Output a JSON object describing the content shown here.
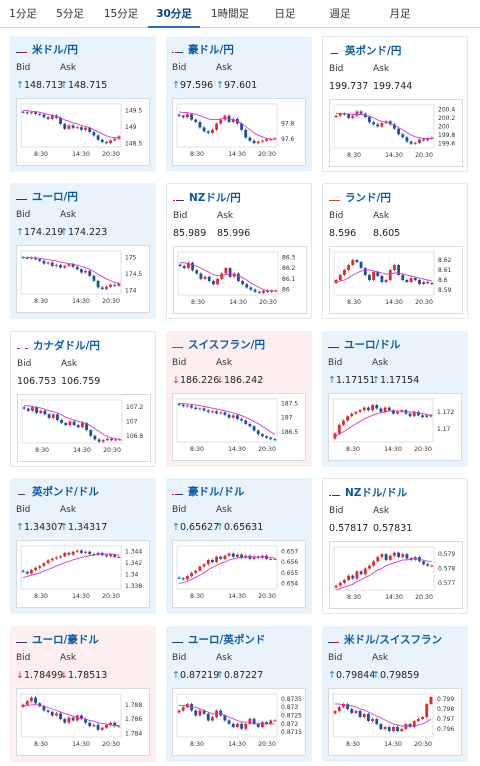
{
  "tabs": [
    {
      "label": "1分足",
      "active": false
    },
    {
      "label": "5分足",
      "active": false
    },
    {
      "label": "15分足",
      "active": false
    },
    {
      "label": "30分足",
      "active": true
    },
    {
      "label": "1時間足",
      "active": false
    },
    {
      "label": "日足",
      "active": false
    },
    {
      "label": "週足",
      "active": false
    },
    {
      "label": "月足",
      "active": false
    }
  ],
  "labels": {
    "bid": "Bid",
    "ask": "Ask"
  },
  "colors": {
    "accent": "#0b5aa7",
    "up_bg": "#e9f3fb",
    "down_bg": "#fdeef0",
    "candle_up": "#e0282e",
    "candle_down": "#1d4fa0",
    "ma": "#d23cc8",
    "arrow_up": "#1f78b4",
    "arrow_down": "#d0342c"
  },
  "cards": [
    {
      "name": "米ドル/円",
      "flag": "us",
      "trend": "up",
      "bid": "148.713",
      "ask": "148.715",
      "arrow": "up"
    },
    {
      "name": "豪ドル/円",
      "flag": "au",
      "trend": "up",
      "bid": "97.596",
      "ask": "97.601",
      "arrow": "up"
    },
    {
      "name": "英ポンド/円",
      "flag": "gb",
      "trend": "flat",
      "bid": "199.737",
      "ask": "199.744",
      "arrow": ""
    },
    {
      "name": "ユーロ/円",
      "flag": "eu",
      "trend": "up",
      "bid": "174.219",
      "ask": "174.223",
      "arrow": "up"
    },
    {
      "name": "NZドル/円",
      "flag": "nz",
      "trend": "flat",
      "bid": "85.989",
      "ask": "85.996",
      "arrow": ""
    },
    {
      "name": "ランド/円",
      "flag": "za",
      "trend": "flat",
      "bid": "8.596",
      "ask": "8.605",
      "arrow": ""
    },
    {
      "name": "カナダドル/円",
      "flag": "ca",
      "trend": "flat",
      "bid": "106.753",
      "ask": "106.759",
      "arrow": ""
    },
    {
      "name": "スイスフラン/円",
      "flag": "ch",
      "trend": "down",
      "bid": "186.226",
      "ask": "186.242",
      "arrow": "down"
    },
    {
      "name": "ユーロ/ドル",
      "flag": "eu",
      "trend": "up",
      "bid": "1.17151",
      "ask": "1.17154",
      "arrow": "up"
    },
    {
      "name": "英ポンド/ドル",
      "flag": "gb",
      "trend": "up",
      "bid": "1.34307",
      "ask": "1.34317",
      "arrow": "up"
    },
    {
      "name": "豪ドル/ドル",
      "flag": "au",
      "trend": "up",
      "bid": "0.65627",
      "ask": "0.65631",
      "arrow": "up"
    },
    {
      "name": "NZドル/ドル",
      "flag": "nz",
      "trend": "flat",
      "bid": "0.57817",
      "ask": "0.57831",
      "arrow": ""
    },
    {
      "name": "ユーロ/豪ドル",
      "flag": "eu",
      "trend": "down",
      "bid": "1.78499",
      "ask": "1.78513",
      "arrow": "down"
    },
    {
      "name": "ユーロ/英ポンド",
      "flag": "eu",
      "trend": "up",
      "bid": "0.87219",
      "ask": "0.87227",
      "arrow": "up"
    },
    {
      "name": "米ドル/スイスフラン",
      "flag": "us",
      "trend": "up",
      "bid": "0.79844",
      "ask": "0.79859",
      "arrow": "up"
    }
  ],
  "chart_data": [
    {
      "type": "candlestick",
      "title": "米ドル/円",
      "x_ticks": [
        "8:30",
        "14:30",
        "20:30"
      ],
      "y_ticks": [
        149.5,
        149,
        148.5
      ],
      "ylim": [
        148.4,
        149.7
      ],
      "close": [
        149.45,
        149.42,
        149.45,
        149.4,
        149.38,
        149.3,
        149.25,
        149.35,
        149.28,
        149.1,
        148.95,
        149.05,
        148.98,
        149.0,
        148.92,
        148.98,
        148.85,
        148.75,
        148.62,
        148.55,
        148.52,
        148.6,
        148.65,
        148.72
      ],
      "ma": [
        149.5,
        149.5,
        149.48,
        149.47,
        149.45,
        149.42,
        149.38,
        149.36,
        149.33,
        149.28,
        149.22,
        149.18,
        149.13,
        149.1,
        149.05,
        149.02,
        148.98,
        148.92,
        148.86,
        148.8,
        148.74,
        148.7,
        148.68,
        148.68
      ]
    },
    {
      "type": "candlestick",
      "title": "豪ドル/円",
      "x_ticks": [
        "8:30",
        "14:30",
        "20:30"
      ],
      "y_ticks": [
        97.8,
        97.6
      ],
      "ylim": [
        97.5,
        98.05
      ],
      "close": [
        97.9,
        97.88,
        97.92,
        97.85,
        97.82,
        97.75,
        97.7,
        97.68,
        97.72,
        97.8,
        97.85,
        97.9,
        97.82,
        97.86,
        97.8,
        97.72,
        97.62,
        97.58,
        97.55,
        97.57,
        97.58,
        97.6,
        97.6,
        97.61
      ],
      "ma": [
        97.95,
        97.94,
        97.94,
        97.93,
        97.92,
        97.9,
        97.88,
        97.86,
        97.85,
        97.85,
        97.86,
        97.87,
        97.86,
        97.85,
        97.83,
        97.8,
        97.76,
        97.72,
        97.68,
        97.65,
        97.63,
        97.61,
        97.6,
        97.6
      ]
    },
    {
      "type": "candlestick",
      "title": "英ポンド/円",
      "x_ticks": [
        "8:30",
        "14:30",
        "20:30"
      ],
      "y_ticks": [
        200.4,
        200.2,
        200,
        199.8,
        199.6
      ],
      "ylim": [
        199.5,
        200.5
      ],
      "close": [
        200.25,
        200.3,
        200.28,
        200.2,
        200.25,
        200.35,
        200.3,
        200.22,
        200.1,
        200.05,
        200.0,
        200.08,
        200.12,
        200.05,
        199.95,
        199.82,
        199.75,
        199.65,
        199.6,
        199.62,
        199.7,
        199.68,
        199.72,
        199.74
      ],
      "ma": [
        200.3,
        200.3,
        200.3,
        200.29,
        200.28,
        200.28,
        200.28,
        200.27,
        200.24,
        200.2,
        200.15,
        200.12,
        200.1,
        200.07,
        200.03,
        199.98,
        199.92,
        199.86,
        199.8,
        199.76,
        199.74,
        199.72,
        199.72,
        199.72
      ]
    },
    {
      "type": "candlestick",
      "title": "ユーロ/円",
      "x_ticks": [
        "8:30",
        "14:30",
        "20:30"
      ],
      "y_ticks": [
        175,
        174.5,
        174
      ],
      "ylim": [
        173.9,
        175.2
      ],
      "close": [
        175.0,
        174.98,
        175.0,
        174.95,
        174.9,
        174.82,
        174.85,
        174.75,
        174.78,
        174.7,
        174.75,
        174.8,
        174.72,
        174.65,
        174.55,
        174.6,
        174.45,
        174.3,
        174.1,
        174.05,
        174.12,
        174.18,
        174.15,
        174.22
      ],
      "ma": [
        175.0,
        175.0,
        175.0,
        174.99,
        174.98,
        174.96,
        174.94,
        174.92,
        174.9,
        174.86,
        174.84,
        174.82,
        174.8,
        174.77,
        174.73,
        174.7,
        174.65,
        174.58,
        174.5,
        174.42,
        174.36,
        174.3,
        174.25,
        174.22
      ]
    },
    {
      "type": "candlestick",
      "title": "NZドル/円",
      "x_ticks": [
        "8:30",
        "14:30",
        "20:30"
      ],
      "y_ticks": [
        86.3,
        86.2,
        86.1,
        86
      ],
      "ylim": [
        85.95,
        86.35
      ],
      "close": [
        86.22,
        86.2,
        86.25,
        86.18,
        86.15,
        86.1,
        86.12,
        86.08,
        86.05,
        86.1,
        86.15,
        86.2,
        86.12,
        86.15,
        86.08,
        86.05,
        86.02,
        86.0,
        85.98,
        85.97,
        85.99,
        85.98,
        85.99,
        85.99
      ],
      "ma": [
        86.25,
        86.25,
        86.24,
        86.23,
        86.22,
        86.2,
        86.18,
        86.16,
        86.14,
        86.13,
        86.13,
        86.14,
        86.14,
        86.14,
        86.13,
        86.11,
        86.09,
        86.06,
        86.04,
        86.02,
        86.0,
        85.99,
        85.99,
        85.99
      ]
    },
    {
      "type": "candlestick",
      "title": "ランド/円",
      "x_ticks": [
        "8:30",
        "14:30",
        "20:30"
      ],
      "y_ticks": [
        8.62,
        8.61,
        8.6,
        8.59
      ],
      "ylim": [
        8.585,
        8.628
      ],
      "close": [
        8.6,
        8.605,
        8.61,
        8.615,
        8.62,
        8.618,
        8.612,
        8.605,
        8.6,
        8.608,
        8.604,
        8.598,
        8.6,
        8.61,
        8.615,
        8.605,
        8.6,
        8.598,
        8.602,
        8.6,
        8.596,
        8.598,
        8.597,
        8.596
      ],
      "ma": [
        8.598,
        8.599,
        8.6,
        8.602,
        8.605,
        8.607,
        8.609,
        8.61,
        8.61,
        8.609,
        8.608,
        8.607,
        8.606,
        8.606,
        8.607,
        8.607,
        8.606,
        8.605,
        8.604,
        8.603,
        8.602,
        8.601,
        8.6,
        8.599
      ]
    },
    {
      "type": "candlestick",
      "title": "カナダドル/円",
      "x_ticks": [
        "8:30",
        "14:30",
        "20:30"
      ],
      "y_ticks": [
        107.2,
        107,
        106.8
      ],
      "ylim": [
        106.7,
        107.3
      ],
      "close": [
        107.18,
        107.15,
        107.2,
        107.12,
        107.15,
        107.1,
        107.05,
        107.1,
        107.02,
        106.98,
        106.95,
        107.0,
        106.95,
        106.92,
        106.98,
        106.88,
        106.8,
        106.75,
        106.72,
        106.74,
        106.76,
        106.74,
        106.75,
        106.75
      ],
      "ma": [
        107.22,
        107.22,
        107.21,
        107.2,
        107.19,
        107.17,
        107.15,
        107.14,
        107.12,
        107.09,
        107.06,
        107.04,
        107.02,
        107.0,
        106.99,
        106.97,
        106.94,
        106.9,
        106.86,
        106.82,
        106.79,
        106.77,
        106.76,
        106.75
      ]
    },
    {
      "type": "candlestick",
      "title": "スイスフラン/円",
      "x_ticks": [
        "8:30",
        "14:30",
        "20:30"
      ],
      "y_ticks": [
        187.5,
        187,
        186.5
      ],
      "ylim": [
        186.15,
        187.65
      ],
      "close": [
        187.45,
        187.4,
        187.42,
        187.35,
        187.3,
        187.32,
        187.25,
        187.2,
        187.22,
        187.15,
        187.18,
        187.1,
        187.0,
        187.08,
        186.95,
        186.9,
        186.78,
        186.7,
        186.55,
        186.42,
        186.35,
        186.3,
        186.25,
        186.23
      ],
      "ma": [
        187.5,
        187.49,
        187.48,
        187.46,
        187.44,
        187.42,
        187.39,
        187.36,
        187.33,
        187.3,
        187.27,
        187.24,
        187.2,
        187.16,
        187.12,
        187.07,
        187.01,
        186.94,
        186.87,
        186.79,
        186.7,
        186.6,
        186.5,
        186.42
      ]
    },
    {
      "type": "candlestick",
      "title": "ユーロ/ドル",
      "x_ticks": [
        "8:30",
        "14:30",
        "20:30"
      ],
      "y_ticks": [
        1.172,
        1.17
      ],
      "ylim": [
        1.1685,
        1.1735
      ],
      "close": [
        1.1695,
        1.1705,
        1.171,
        1.1715,
        1.1718,
        1.172,
        1.1722,
        1.1725,
        1.1722,
        1.1728,
        1.1724,
        1.172,
        1.1725,
        1.1722,
        1.1718,
        1.172,
        1.1722,
        1.1718,
        1.1715,
        1.172,
        1.1716,
        1.1714,
        1.1716,
        1.1715
      ],
      "ma": [
        1.1692,
        1.1694,
        1.1697,
        1.17,
        1.1703,
        1.1706,
        1.1709,
        1.1712,
        1.1714,
        1.1716,
        1.1718,
        1.1719,
        1.172,
        1.1721,
        1.1721,
        1.1721,
        1.1721,
        1.172,
        1.172,
        1.172,
        1.1719,
        1.1718,
        1.1717,
        1.1716
      ]
    },
    {
      "type": "candlestick",
      "title": "英ポンド/ドル",
      "x_ticks": [
        "8:30",
        "14:30",
        "20:30"
      ],
      "y_ticks": [
        1.344,
        1.342,
        1.34,
        1.338
      ],
      "ylim": [
        1.3375,
        1.345
      ],
      "close": [
        1.3405,
        1.3402,
        1.3408,
        1.3412,
        1.3415,
        1.342,
        1.3425,
        1.3428,
        1.343,
        1.3432,
        1.3438,
        1.3435,
        1.344,
        1.3442,
        1.3438,
        1.344,
        1.3436,
        1.3435,
        1.3438,
        1.3434,
        1.3432,
        1.3435,
        1.3431,
        1.3431
      ],
      "ma": [
        1.3395,
        1.3397,
        1.3399,
        1.3401,
        1.3403,
        1.3406,
        1.3409,
        1.3412,
        1.3415,
        1.3418,
        1.3421,
        1.3423,
        1.3426,
        1.3428,
        1.343,
        1.3432,
        1.3433,
        1.3434,
        1.3435,
        1.3436,
        1.3436,
        1.3436,
        1.3435,
        1.3434
      ]
    },
    {
      "type": "candlestick",
      "title": "豪ドル/ドル",
      "x_ticks": [
        "8:30",
        "14:30",
        "20:30"
      ],
      "y_ticks": [
        0.657,
        0.656,
        0.655,
        0.654
      ],
      "ylim": [
        0.6535,
        0.6575
      ],
      "close": [
        0.6545,
        0.6544,
        0.6547,
        0.655,
        0.6552,
        0.6556,
        0.6558,
        0.6562,
        0.656,
        0.6565,
        0.6563,
        0.6566,
        0.6568,
        0.6565,
        0.6567,
        0.6564,
        0.6566,
        0.6563,
        0.6565,
        0.6564,
        0.6566,
        0.6563,
        0.6563,
        0.6563
      ],
      "ma": [
        0.654,
        0.6541,
        0.6542,
        0.6544,
        0.6546,
        0.6548,
        0.655,
        0.6553,
        0.6555,
        0.6557,
        0.6559,
        0.656,
        0.6562,
        0.6563,
        0.6564,
        0.6564,
        0.6565,
        0.6565,
        0.6565,
        0.6565,
        0.6565,
        0.6565,
        0.6564,
        0.6564
      ]
    },
    {
      "type": "candlestick",
      "title": "NZドル/ドル",
      "x_ticks": [
        "8:30",
        "14:30",
        "20:30"
      ],
      "y_ticks": [
        0.579,
        0.578,
        0.577
      ],
      "ylim": [
        0.5765,
        0.5795
      ],
      "close": [
        0.5768,
        0.577,
        0.5772,
        0.5775,
        0.5773,
        0.5778,
        0.5776,
        0.578,
        0.5782,
        0.5785,
        0.5788,
        0.579,
        0.5786,
        0.5789,
        0.5791,
        0.5788,
        0.579,
        0.5787,
        0.5786,
        0.5788,
        0.5785,
        0.5783,
        0.5782,
        0.5782
      ],
      "ma": [
        0.5765,
        0.5766,
        0.5767,
        0.5768,
        0.5769,
        0.5771,
        0.5772,
        0.5774,
        0.5775,
        0.5777,
        0.5779,
        0.578,
        0.5782,
        0.5783,
        0.5784,
        0.5785,
        0.5786,
        0.5786,
        0.5787,
        0.5787,
        0.5786,
        0.5786,
        0.5785,
        0.5785
      ]
    },
    {
      "type": "candlestick",
      "title": "ユーロ/豪ドル",
      "x_ticks": [
        "8:30",
        "14:30",
        "20:30"
      ],
      "y_ticks": [
        1.788,
        1.786,
        1.784
      ],
      "ylim": [
        1.7835,
        1.7895
      ],
      "close": [
        1.788,
        1.7885,
        1.789,
        1.7882,
        1.7878,
        1.7872,
        1.787,
        1.7865,
        1.7868,
        1.786,
        1.7855,
        1.7862,
        1.7858,
        1.7865,
        1.786,
        1.7855,
        1.785,
        1.7852,
        1.7845,
        1.7848,
        1.7852,
        1.7855,
        1.785,
        1.785
      ],
      "ma": [
        1.7878,
        1.7879,
        1.788,
        1.788,
        1.7879,
        1.7878,
        1.7876,
        1.7874,
        1.7872,
        1.787,
        1.7868,
        1.7866,
        1.7864,
        1.7862,
        1.7861,
        1.786,
        1.7858,
        1.7857,
        1.7855,
        1.7854,
        1.7853,
        1.7852,
        1.7851,
        1.7851
      ]
    },
    {
      "type": "candlestick",
      "title": "ユーロ/英ポンド",
      "x_ticks": [
        "8:30",
        "14:30",
        "20:30"
      ],
      "y_ticks": [
        0.8735,
        0.873,
        0.8725,
        0.872,
        0.8715
      ],
      "ylim": [
        0.8712,
        0.8738
      ],
      "close": [
        0.8728,
        0.873,
        0.8732,
        0.8728,
        0.8725,
        0.8728,
        0.8726,
        0.8722,
        0.8724,
        0.8728,
        0.8725,
        0.8722,
        0.872,
        0.8718,
        0.872,
        0.8717,
        0.872,
        0.8723,
        0.872,
        0.8718,
        0.8721,
        0.872,
        0.8722,
        0.8722
      ],
      "ma": [
        0.8731,
        0.8731,
        0.8731,
        0.873,
        0.873,
        0.8729,
        0.8728,
        0.8727,
        0.8726,
        0.8726,
        0.8726,
        0.8725,
        0.8724,
        0.8723,
        0.8722,
        0.8721,
        0.8721,
        0.8721,
        0.872,
        0.872,
        0.872,
        0.872,
        0.872,
        0.872
      ]
    },
    {
      "type": "candlestick",
      "title": "米ドル/スイスフラン",
      "x_ticks": [
        "8:30",
        "14:30",
        "20:30"
      ],
      "y_ticks": [
        0.799,
        0.798,
        0.797,
        0.796
      ],
      "ylim": [
        0.7952,
        0.7995
      ],
      "close": [
        0.7978,
        0.7982,
        0.7985,
        0.798,
        0.7976,
        0.7978,
        0.7972,
        0.7975,
        0.7968,
        0.797,
        0.7965,
        0.796,
        0.7962,
        0.7958,
        0.7962,
        0.7958,
        0.796,
        0.7965,
        0.7962,
        0.7968,
        0.797,
        0.7972,
        0.7985,
        0.7992
      ],
      "ma": [
        0.7985,
        0.7985,
        0.7984,
        0.7984,
        0.7983,
        0.7982,
        0.798,
        0.7979,
        0.7977,
        0.7975,
        0.7973,
        0.7971,
        0.7969,
        0.7967,
        0.7965,
        0.7964,
        0.7963,
        0.7963,
        0.7963,
        0.7963,
        0.7964,
        0.7965,
        0.7967,
        0.797
      ]
    }
  ]
}
